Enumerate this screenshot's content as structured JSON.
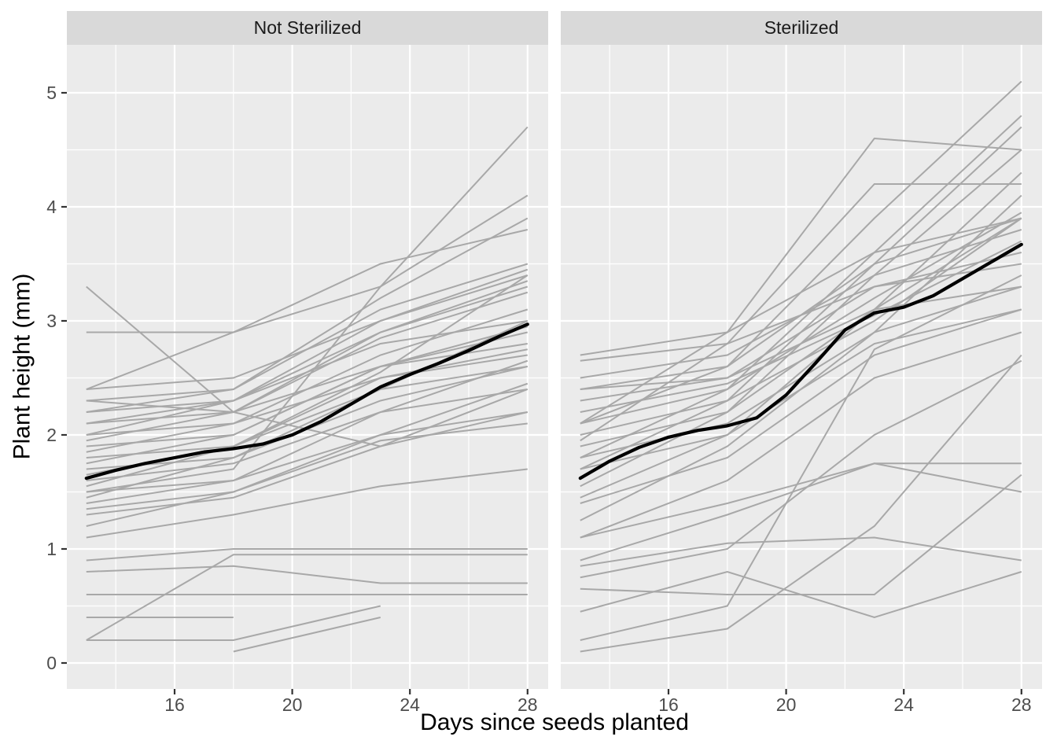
{
  "chart_data": {
    "type": "line",
    "title": "",
    "xlabel": "Days since seeds planted",
    "ylabel": "Plant height (mm)",
    "legend_position": "none",
    "grid": true,
    "x_days": [
      13,
      18,
      23,
      28
    ],
    "x_major_ticks": [
      16,
      20,
      24,
      28
    ],
    "x_tick_labels": [
      "16",
      "20",
      "24",
      "28"
    ],
    "x_minor_ticks": [
      14,
      18,
      22,
      26
    ],
    "y_major_ticks": [
      0,
      1,
      2,
      3,
      4,
      5
    ],
    "y_tick_labels": [
      "0",
      "1",
      "2",
      "3",
      "4",
      "5"
    ],
    "y_minor_ticks": [
      0.5,
      1.5,
      2.5,
      3.5,
      4.5
    ],
    "xlim": [
      12.3,
      28.7
    ],
    "ylim": [
      -0.23,
      5.42
    ],
    "series_meaning": "gray lines = individual plants measured on days 13/18/23/28; black line = smoothed mean trend per facet",
    "panels": [
      {
        "label": "Not Sterilized",
        "lines": [
          [
            3.3,
            2.2,
            1.9,
            2.4
          ],
          [
            2.9,
            2.9,
            3.5,
            3.8
          ],
          [
            2.4,
            2.9,
            3.3,
            4.1
          ],
          [
            2.4,
            2.5,
            3.0,
            3.4
          ],
          [
            2.3,
            2.4,
            3.2,
            3.9
          ],
          [
            2.3,
            2.2,
            2.9,
            3.3
          ],
          [
            2.2,
            2.4,
            3.1,
            3.5
          ],
          [
            2.2,
            2.3,
            2.8,
            3.0
          ],
          [
            2.1,
            2.3,
            3.0,
            3.45
          ],
          [
            2.1,
            2.2,
            2.6,
            2.9
          ],
          [
            2.0,
            2.3,
            2.9,
            3.35
          ],
          [
            2.0,
            2.1,
            2.5,
            2.7
          ],
          [
            1.95,
            2.2,
            2.85,
            3.25
          ],
          [
            1.9,
            2.0,
            2.6,
            2.8
          ],
          [
            1.85,
            2.1,
            2.7,
            3.1
          ],
          [
            1.8,
            1.9,
            2.4,
            2.6
          ],
          [
            1.75,
            2.0,
            2.6,
            2.95
          ],
          [
            1.7,
            1.8,
            2.3,
            2.6
          ],
          [
            1.65,
            1.9,
            2.5,
            2.75
          ],
          [
            1.6,
            1.75,
            2.2,
            2.4
          ],
          [
            1.55,
            1.9,
            2.55,
            3.4
          ],
          [
            1.5,
            1.7,
            3.3,
            4.7
          ],
          [
            1.5,
            1.6,
            2.0,
            2.2
          ],
          [
            1.45,
            1.8,
            2.4,
            3.0
          ],
          [
            1.4,
            1.6,
            2.2,
            2.65
          ],
          [
            1.35,
            1.5,
            1.95,
            2.1
          ],
          [
            1.3,
            1.45,
            1.9,
            2.2
          ],
          [
            1.2,
            1.5,
            2.0,
            2.45
          ],
          [
            1.1,
            1.3,
            1.55,
            1.7
          ],
          [
            0.9,
            1.0,
            1.0,
            1.0
          ],
          [
            0.2,
            0.95,
            0.95,
            0.95
          ],
          [
            0.8,
            0.85,
            0.7,
            0.7
          ],
          [
            0.6,
            0.6,
            0.6,
            0.6
          ],
          [
            0.4,
            0.4,
            null,
            null
          ],
          [
            0.2,
            0.2,
            0.5,
            null
          ],
          [
            null,
            0.1,
            0.4,
            null
          ]
        ],
        "mean": {
          "days": [
            13,
            14,
            15,
            16,
            17,
            18,
            19,
            20,
            21,
            22,
            23,
            24,
            25,
            26,
            27,
            28
          ],
          "values": [
            1.62,
            1.69,
            1.75,
            1.8,
            1.85,
            1.88,
            1.92,
            2.0,
            2.12,
            2.27,
            2.42,
            2.53,
            2.63,
            2.74,
            2.86,
            2.97
          ]
        }
      },
      {
        "label": "Sterilized",
        "lines": [
          [
            2.7,
            2.9,
            3.6,
            3.9
          ],
          [
            2.65,
            2.8,
            3.3,
            3.6
          ],
          [
            2.5,
            2.7,
            3.4,
            3.8
          ],
          [
            2.4,
            2.6,
            3.5,
            3.9
          ],
          [
            2.4,
            2.5,
            3.1,
            3.3
          ],
          [
            2.3,
            2.5,
            3.3,
            3.5
          ],
          [
            2.2,
            2.45,
            3.05,
            3.7
          ],
          [
            2.1,
            2.9,
            4.6,
            4.5
          ],
          [
            2.1,
            2.4,
            3.2,
            3.95
          ],
          [
            2.1,
            2.6,
            3.9,
            5.1
          ],
          [
            2.0,
            2.3,
            3.0,
            3.9
          ],
          [
            1.95,
            2.8,
            4.2,
            4.2
          ],
          [
            1.9,
            2.2,
            3.1,
            3.9
          ],
          [
            1.8,
            2.4,
            3.6,
            4.8
          ],
          [
            1.8,
            2.1,
            2.9,
            3.3
          ],
          [
            1.7,
            2.3,
            3.5,
            4.7
          ],
          [
            1.7,
            2.0,
            2.8,
            3.1
          ],
          [
            1.55,
            2.2,
            3.4,
            4.5
          ],
          [
            1.45,
            2.0,
            3.1,
            4.3
          ],
          [
            1.4,
            1.8,
            2.7,
            3.1
          ],
          [
            1.25,
            1.9,
            2.9,
            4.1
          ],
          [
            1.1,
            1.6,
            2.5,
            2.9
          ],
          [
            1.1,
            1.4,
            1.75,
            1.75
          ],
          [
            0.9,
            1.3,
            1.75,
            1.5
          ],
          [
            0.85,
            1.05,
            1.1,
            0.9
          ],
          [
            0.75,
            1.0,
            2.0,
            2.65
          ],
          [
            0.65,
            0.6,
            0.6,
            1.65
          ],
          [
            0.45,
            0.8,
            0.4,
            0.8
          ],
          [
            0.2,
            0.5,
            2.75,
            3.4
          ],
          [
            0.1,
            0.3,
            1.2,
            2.7
          ]
        ],
        "mean": {
          "days": [
            13,
            14,
            15,
            16,
            17,
            18,
            19,
            20,
            21,
            22,
            23,
            24,
            25,
            26,
            27,
            28
          ],
          "values": [
            1.62,
            1.77,
            1.89,
            1.98,
            2.04,
            2.08,
            2.15,
            2.35,
            2.63,
            2.92,
            3.07,
            3.12,
            3.22,
            3.37,
            3.52,
            3.67
          ]
        }
      }
    ],
    "colors": {
      "panel_bg": "#EBEBEB",
      "strip_bg": "#D9D9D9",
      "strip_text": "#1A1A1A",
      "grid": "#FFFFFF",
      "series": "#A8A8A8",
      "mean": "#000000",
      "axis_text": "#4D4D4D",
      "tick_mark": "#333333",
      "title_text": "#000000",
      "figure_bg": "#FFFFFF"
    }
  }
}
